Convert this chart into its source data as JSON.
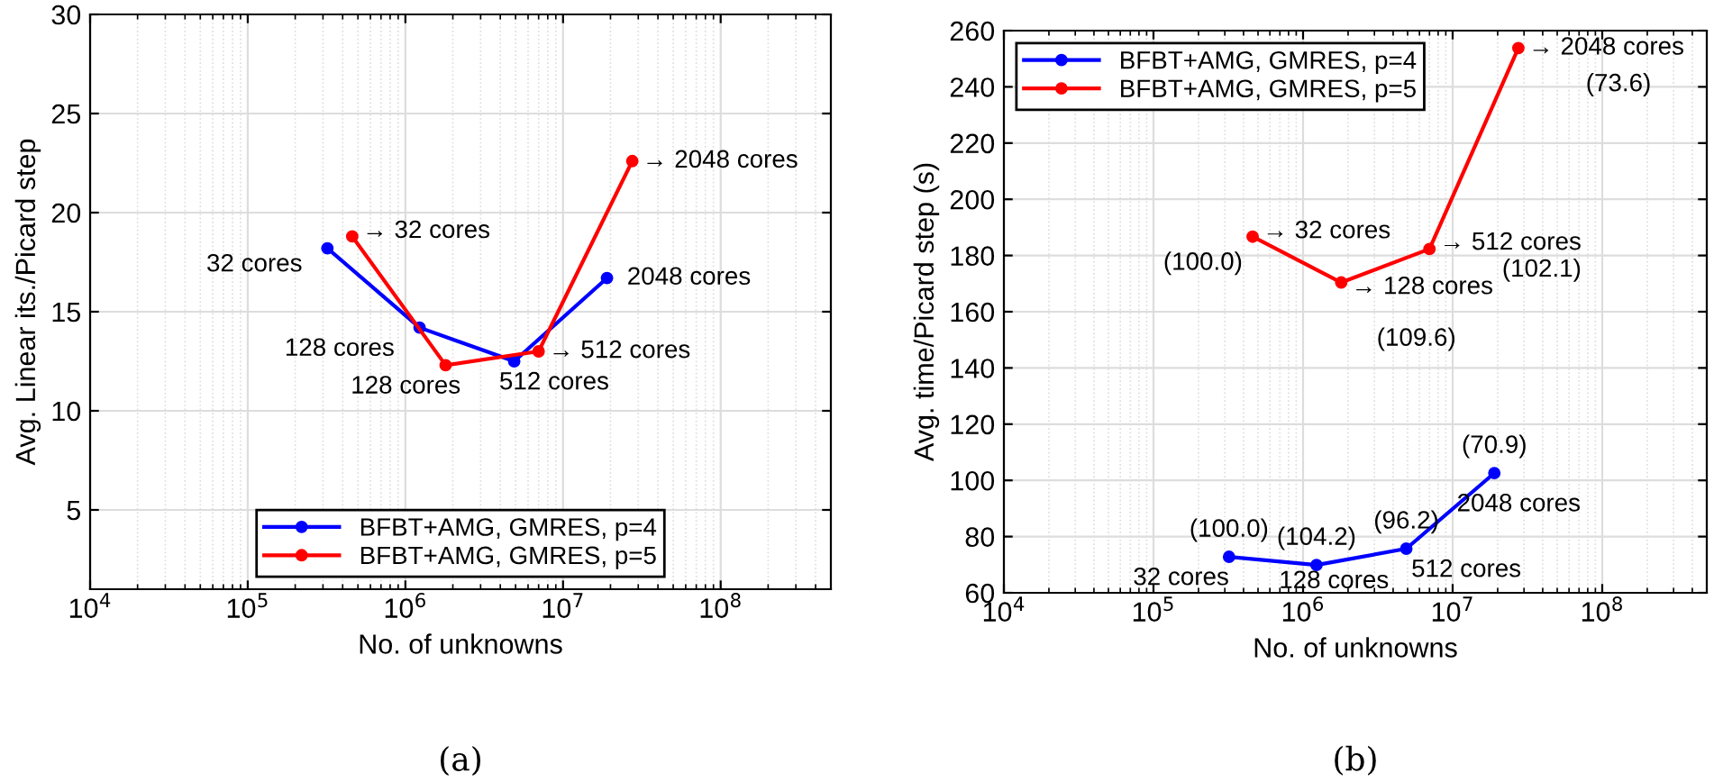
{
  "chart_data": [
    {
      "type": "line",
      "xlabel": "No. of unknowns",
      "ylabel": "Avg. Linear its./Picard step",
      "log": "x",
      "grid": true,
      "legend": "bottom",
      "marker": "circle",
      "line_style": "solid",
      "xlim": [
        10000,
        500000000
      ],
      "xticks": [
        {
          "value": 10000,
          "label": "10$^{4}$"
        },
        {
          "value": 100000,
          "label": "10$^{5}$"
        },
        {
          "value": 1000000,
          "label": "10$^{6}$"
        },
        {
          "value": 10000000,
          "label": "10$^{7}$"
        },
        {
          "value": 100000000,
          "label": "10$^{8}$"
        }
      ],
      "ylim": [
        1,
        30
      ],
      "yticks": [
        5,
        10,
        15,
        20,
        25,
        30
      ],
      "series": [
        {
          "name": "BFBT+AMG, GMRES, p=4",
          "color": "#0000ff",
          "x": [
            320000,
            1230000,
            4900000,
            19000000
          ],
          "values": [
            18.2,
            14.2,
            12.5,
            16.7
          ]
        },
        {
          "name": "BFBT+AMG, GMRES, p=5",
          "color": "#ff0000",
          "x": [
            460000,
            1800000,
            7000000,
            27500000
          ],
          "values": [
            18.8,
            12.3,
            13.0,
            22.6
          ]
        }
      ],
      "annotations": [
        {
          "text": "32 cores",
          "x": 320000,
          "y": 18.2
        },
        {
          "text": "128 cores",
          "x": 1230000,
          "y": 14.2
        },
        {
          "text": "512 cores",
          "x": 4900000,
          "y": 12.5
        },
        {
          "text": "2048 cores",
          "x": 19000000,
          "y": 16.7
        },
        {
          "text": "→ 32 cores",
          "x": 460000,
          "y": 18.8
        },
        {
          "text": "128 cores",
          "x": 1800000,
          "y": 12.3
        },
        {
          "text": "→ 512 cores",
          "x": 7000000,
          "y": 13.0
        },
        {
          "text": "→ 2048 cores",
          "x": 27500000,
          "y": 22.6
        },
        "(a)"
      ]
    },
    {
      "type": "line",
      "xlabel": "No. of unknowns",
      "ylabel": "Avg. time/Picard step (s)",
      "log": "x",
      "grid": true,
      "legend": "top left",
      "marker": "circle",
      "line_style": "solid",
      "xlim": [
        10000,
        500000000
      ],
      "xticks": [
        {
          "value": 10000,
          "label": "10$^{4}$"
        },
        {
          "value": 100000,
          "label": "10$^{5}$"
        },
        {
          "value": 1000000,
          "label": "10$^{6}$"
        },
        {
          "value": 10000000,
          "label": "10$^{7}$"
        },
        {
          "value": 100000000,
          "label": "10$^{8}$"
        }
      ],
      "ylim": [
        60,
        260
      ],
      "yticks": [
        60,
        80,
        100,
        120,
        140,
        160,
        180,
        200,
        220,
        240,
        260
      ],
      "series": [
        {
          "name": "BFBT+AMG, GMRES, p=4",
          "color": "#0000ff",
          "x": [
            320000,
            1230000,
            4900000,
            19000000
          ],
          "values": [
            72.8,
            69.9,
            75.7,
            102.6
          ]
        },
        {
          "name": "BFBT+AMG, GMRES, p=5",
          "color": "#ff0000",
          "x": [
            460000,
            1800000,
            7000000,
            27500000
          ],
          "values": [
            186.7,
            170.4,
            182.3,
            253.8
          ]
        }
      ],
      "annotations": [
        {
          "text": "(100.0)",
          "x": 320000,
          "y": 72.8
        },
        {
          "text": "32 cores",
          "x": 320000,
          "y": 72.8
        },
        {
          "text": "(104.2)",
          "x": 1230000,
          "y": 69.9
        },
        {
          "text": "128 cores",
          "x": 1230000,
          "y": 69.9
        },
        {
          "text": "(96.2)",
          "x": 4900000,
          "y": 75.7
        },
        {
          "text": "512 cores",
          "x": 4900000,
          "y": 75.7
        },
        {
          "text": "(70.9)",
          "x": 19000000,
          "y": 102.6
        },
        {
          "text": "2048 cores",
          "x": 19000000,
          "y": 102.6
        },
        {
          "text": "→ 32 cores",
          "x": 460000,
          "y": 186.7
        },
        {
          "text": "(100.0)",
          "x": 460000,
          "y": 186.7
        },
        {
          "text": "→ 128 cores",
          "x": 1800000,
          "y": 170.4
        },
        {
          "text": "(109.6)",
          "x": 1800000,
          "y": 170.4
        },
        {
          "text": "→ 512 cores\n(102.1)",
          "x": 7000000,
          "y": 182.3
        },
        {
          "text": "→ 2048 cores",
          "x": 27500000,
          "y": 253.8
        },
        {
          "text": "(73.6)",
          "x": 27500000,
          "y": 253.8
        },
        "(b)"
      ]
    }
  ]
}
